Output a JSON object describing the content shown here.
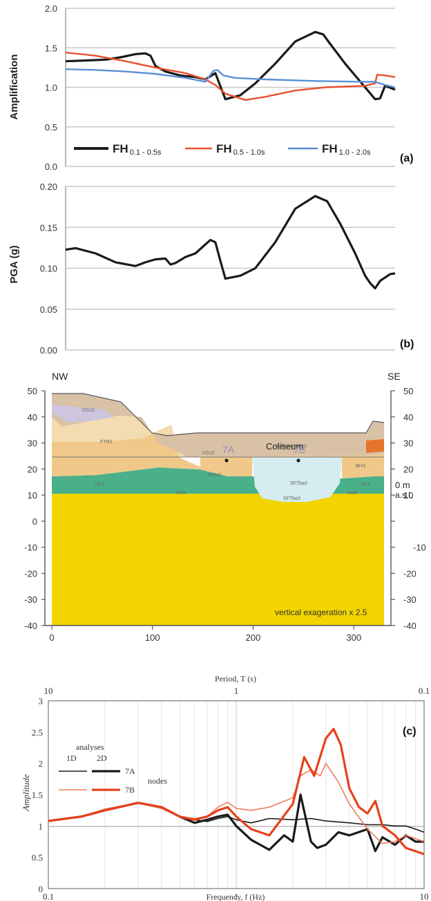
{
  "chart_data": [
    {
      "type": "line",
      "panel_label": "(a)",
      "ylabel": "Amplification",
      "ylim": [
        0.0,
        2.0
      ],
      "yticks": [
        "0.0",
        "0.5",
        "1.0",
        "1.5",
        "2.0"
      ],
      "x_range": [
        0,
        330
      ],
      "grid": true,
      "legend_position": "bottom",
      "series": [
        {
          "legend_main": "FH",
          "legend_sub": "0.1 - 0.5s",
          "color": "#1a1a1a",
          "x": [
            0,
            20,
            40,
            55,
            70,
            80,
            85,
            90,
            100,
            115,
            130,
            140,
            150,
            160,
            175,
            190,
            210,
            230,
            250,
            258,
            265,
            280,
            300,
            310,
            315,
            320,
            330
          ],
          "y": [
            1.33,
            1.34,
            1.35,
            1.38,
            1.42,
            1.43,
            1.4,
            1.27,
            1.2,
            1.15,
            1.13,
            1.1,
            1.18,
            0.85,
            0.9,
            1.05,
            1.3,
            1.58,
            1.7,
            1.67,
            1.55,
            1.3,
            1.0,
            0.85,
            0.86,
            1.02,
            0.97
          ]
        },
        {
          "legend_main": "FH",
          "legend_sub": "0.5 - 1.0s",
          "color": "#e8502c",
          "x": [
            0,
            30,
            60,
            90,
            120,
            140,
            150,
            160,
            180,
            200,
            230,
            260,
            300,
            310,
            312,
            320,
            330
          ],
          "y": [
            1.44,
            1.4,
            1.33,
            1.25,
            1.18,
            1.1,
            1.03,
            0.92,
            0.84,
            0.88,
            0.96,
            1.0,
            1.02,
            1.05,
            1.16,
            1.15,
            1.13
          ]
        },
        {
          "legend_main": "FH",
          "legend_sub": "1.0 - 2.0s",
          "color": "#5a8fd6",
          "x": [
            0,
            30,
            60,
            90,
            120,
            140,
            148,
            152,
            158,
            170,
            200,
            250,
            300,
            310,
            320,
            330
          ],
          "y": [
            1.23,
            1.22,
            1.2,
            1.17,
            1.12,
            1.07,
            1.21,
            1.22,
            1.15,
            1.12,
            1.1,
            1.08,
            1.07,
            1.07,
            1.03,
            1.0
          ]
        }
      ]
    },
    {
      "type": "line",
      "panel_label": "(b)",
      "ylabel": "PGA (g)",
      "ylim": [
        0.0,
        0.22
      ],
      "yticks": [
        "0.00",
        "0.05",
        "0.10",
        "0.15",
        "0.20"
      ],
      "x_range": [
        0,
        330
      ],
      "grid": true,
      "series": [
        {
          "color": "#1a1a1a",
          "x": [
            0,
            10,
            30,
            50,
            70,
            80,
            90,
            100,
            105,
            110,
            120,
            130,
            140,
            145,
            150,
            155,
            160,
            175,
            190,
            210,
            230,
            250,
            262,
            275,
            290,
            300,
            305,
            310,
            315,
            325,
            330
          ],
          "y": [
            0.135,
            0.137,
            0.13,
            0.118,
            0.113,
            0.118,
            0.122,
            0.123,
            0.115,
            0.117,
            0.125,
            0.13,
            0.142,
            0.148,
            0.145,
            0.12,
            0.096,
            0.1,
            0.11,
            0.145,
            0.19,
            0.207,
            0.2,
            0.17,
            0.13,
            0.1,
            0.09,
            0.083,
            0.093,
            0.102,
            0.103
          ]
        }
      ]
    },
    {
      "type": "area",
      "left_label": "NW",
      "right_label": "SE",
      "ylim": [
        -40,
        50
      ],
      "xlim": [
        0,
        330
      ],
      "yticks": [
        "50",
        "40",
        "30",
        "20",
        "10",
        "0",
        "-10",
        "-20",
        "-30",
        "-40"
      ],
      "xticks": [
        "0",
        "100",
        "200",
        "300"
      ],
      "right_axis_label_1": "0 m",
      "right_axis_label_2": "a.s.l.",
      "site_label": "Coliseum",
      "stations": [
        "7A",
        "7B"
      ],
      "note": "vertical exageration x 2.5",
      "unit_labels": [
        "VGU2",
        "FTR2",
        "A (foundation)",
        "VGU2",
        "VGU2",
        "SFTba3",
        "SFTba3",
        "DL1",
        "DL1",
        "MVA",
        "MVA",
        "BHS"
      ],
      "colors": {
        "base": "#f2d400",
        "green": "#49b08a",
        "tan": "#f0c98a",
        "light": "#f2dcb0",
        "fill": "#d9c1a6",
        "cyan": "#d5ecf0",
        "lavender": "#cdc6de",
        "orange": "#e4742a"
      }
    },
    {
      "type": "line",
      "panel_label": "(c)",
      "ylabel": "Amplitude",
      "xlabel": "Frequency, f (Hz)",
      "top_xlabel": "Period, T (s)",
      "x_scale": "log",
      "xlim": [
        0.1,
        10
      ],
      "ylim": [
        0,
        3
      ],
      "xticks": [
        "0.1",
        "1",
        "10"
      ],
      "top_xticks": [
        "10",
        "1",
        "0.1"
      ],
      "yticks": [
        "0",
        "0.5",
        "1",
        "1.5",
        "2",
        "2.5",
        "3"
      ],
      "legend": {
        "header": "analyses",
        "col1": "1D",
        "col2": "2D",
        "row1": "7A",
        "row2": "7B",
        "group": "nodes"
      },
      "series": [
        {
          "label": "7A 1D",
          "color": "#1a1a1a",
          "width": 1.6,
          "x": [
            0.1,
            0.15,
            0.2,
            0.3,
            0.4,
            0.5,
            0.6,
            0.7,
            0.8,
            0.9,
            1.0,
            1.2,
            1.5,
            2.0,
            2.5,
            3.0,
            4.0,
            5.0,
            6.0,
            7.0,
            8.0,
            9.0,
            10.0
          ],
          "y": [
            1.08,
            1.15,
            1.27,
            1.37,
            1.28,
            1.15,
            1.1,
            1.07,
            1.12,
            1.15,
            1.1,
            1.05,
            1.12,
            1.1,
            1.12,
            1.08,
            1.05,
            1.02,
            1.02,
            1.0,
            1.0,
            0.95,
            0.9
          ]
        },
        {
          "label": "7A 2D",
          "color": "#1a1a1a",
          "width": 3.2,
          "x": [
            0.1,
            0.15,
            0.2,
            0.3,
            0.4,
            0.5,
            0.6,
            0.7,
            0.8,
            0.9,
            1.0,
            1.2,
            1.5,
            1.8,
            2.0,
            2.2,
            2.5,
            2.7,
            3.0,
            3.5,
            4.0,
            5.0,
            5.5,
            6.0,
            7.0,
            8.0,
            9.0,
            10.0
          ],
          "y": [
            1.08,
            1.15,
            1.25,
            1.37,
            1.3,
            1.15,
            1.05,
            1.1,
            1.15,
            1.18,
            1.0,
            0.78,
            0.62,
            0.85,
            0.75,
            1.5,
            0.75,
            0.65,
            0.7,
            0.9,
            0.85,
            0.95,
            0.6,
            0.82,
            0.7,
            0.85,
            0.75,
            0.75
          ]
        },
        {
          "label": "7B 1D",
          "color": "#f07b5a",
          "width": 1.6,
          "x": [
            0.1,
            0.15,
            0.2,
            0.3,
            0.4,
            0.5,
            0.6,
            0.7,
            0.8,
            0.9,
            1.0,
            1.2,
            1.5,
            2.0,
            2.2,
            2.5,
            2.8,
            3.0,
            3.5,
            4.0,
            5.0,
            6.0,
            7.0,
            8.0,
            10.0
          ],
          "y": [
            1.08,
            1.15,
            1.27,
            1.37,
            1.28,
            1.15,
            1.12,
            1.15,
            1.3,
            1.38,
            1.28,
            1.25,
            1.3,
            1.45,
            1.8,
            1.9,
            1.8,
            2.0,
            1.7,
            1.35,
            0.95,
            0.72,
            0.75,
            0.85,
            0.75
          ]
        },
        {
          "label": "7B 2D",
          "color": "#e8401c",
          "width": 3.2,
          "x": [
            0.1,
            0.15,
            0.2,
            0.3,
            0.4,
            0.5,
            0.6,
            0.7,
            0.8,
            0.9,
            1.0,
            1.2,
            1.5,
            2.0,
            2.3,
            2.6,
            3.0,
            3.3,
            3.6,
            4.0,
            4.5,
            5.0,
            5.5,
            6.0,
            7.0,
            8.0,
            10.0
          ],
          "y": [
            1.08,
            1.15,
            1.25,
            1.37,
            1.3,
            1.15,
            1.1,
            1.15,
            1.25,
            1.3,
            1.15,
            0.95,
            0.85,
            1.35,
            2.1,
            1.8,
            2.4,
            2.55,
            2.3,
            1.6,
            1.3,
            1.2,
            1.4,
            1.0,
            0.85,
            0.65,
            0.55
          ]
        }
      ]
    }
  ]
}
